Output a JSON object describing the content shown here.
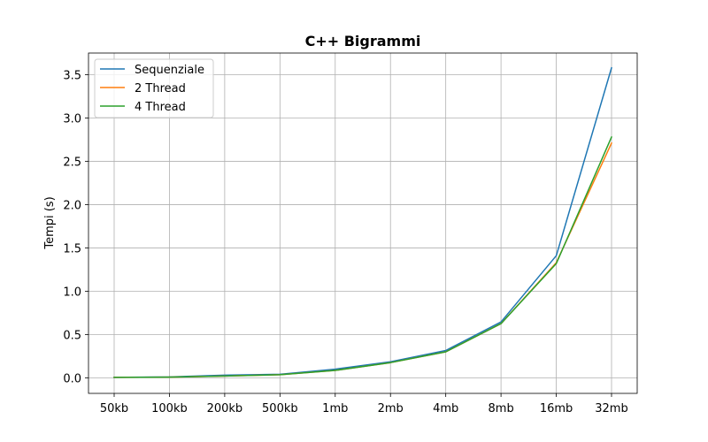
{
  "chart_data": {
    "type": "line",
    "title": "C++ Bigrammi",
    "xlabel": "",
    "ylabel": "Tempi (s)",
    "categories": [
      "50kb",
      "100kb",
      "200kb",
      "500kb",
      "1mb",
      "2mb",
      "4mb",
      "8mb",
      "16mb",
      "32mb"
    ],
    "ylim": [
      -0.18,
      3.75
    ],
    "yticks": [
      0.0,
      0.5,
      1.0,
      1.5,
      2.0,
      2.5,
      3.0,
      3.5
    ],
    "ytick_labels": [
      "0.0",
      "0.5",
      "1.0",
      "1.5",
      "2.0",
      "2.5",
      "3.0",
      "3.5"
    ],
    "grid": true,
    "legend_position": "top-left",
    "series": [
      {
        "name": "Sequenziale",
        "color": "#1f77b4",
        "values": [
          0.005,
          0.01,
          0.03,
          0.04,
          0.1,
          0.185,
          0.315,
          0.645,
          1.41,
          3.58
        ]
      },
      {
        "name": "2 Thread",
        "color": "#ff7f0e",
        "values": [
          0.005,
          0.008,
          0.02,
          0.035,
          0.085,
          0.175,
          0.3,
          0.625,
          1.33,
          2.71
        ]
      },
      {
        "name": "4 Thread",
        "color": "#2ca02c",
        "values": [
          0.005,
          0.008,
          0.02,
          0.035,
          0.085,
          0.175,
          0.3,
          0.625,
          1.32,
          2.78
        ]
      }
    ]
  }
}
